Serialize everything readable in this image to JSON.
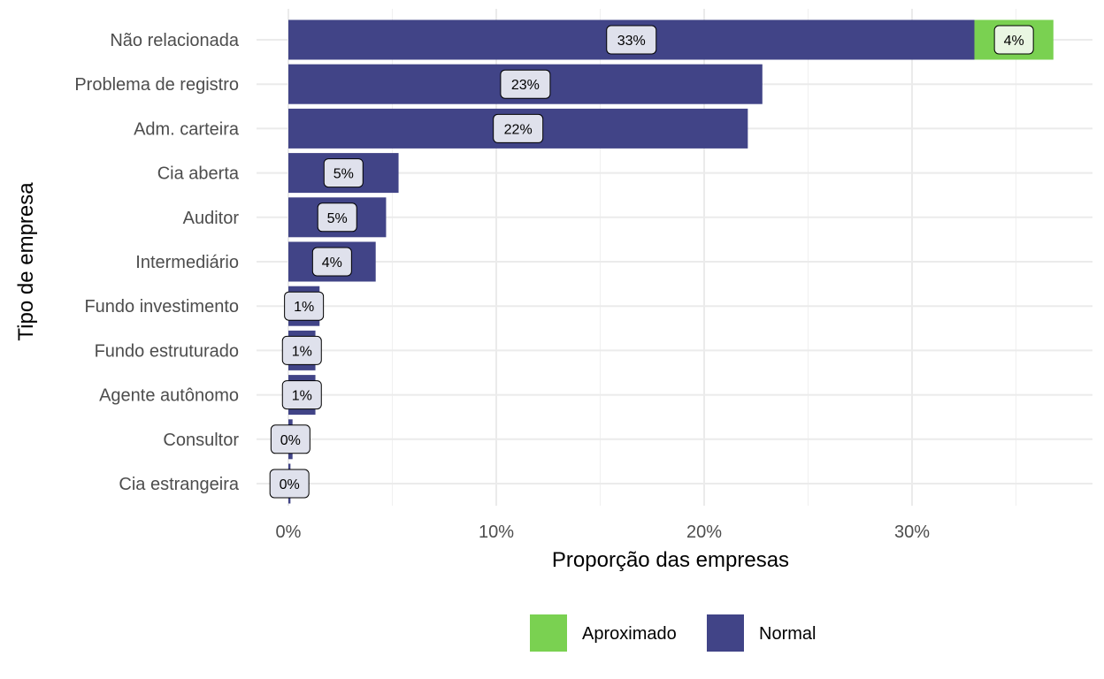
{
  "chart_data": {
    "type": "bar",
    "orientation": "horizontal",
    "stacked": true,
    "xlabel": "Proporção das empresas",
    "ylabel": "Tipo de empresa",
    "xlim": [
      -0.01,
      0.385
    ],
    "x_ticks": [
      0,
      0.1,
      0.2,
      0.3
    ],
    "x_tick_labels": [
      "0%",
      "10%",
      "20%",
      "30%"
    ],
    "grid": true,
    "legend_position": "bottom",
    "categories": [
      "Não relacionada",
      "Problema de registro",
      "Adm. carteira",
      "Cia aberta",
      "Auditor",
      "Intermediário",
      "Fundo investimento",
      "Fundo estruturado",
      "Agente autônomo",
      "Consultor",
      "Cia estrangeira"
    ],
    "series": [
      {
        "name": "Normal",
        "color": "#414487",
        "values": [
          0.33,
          0.228,
          0.221,
          0.053,
          0.047,
          0.042,
          0.015,
          0.013,
          0.013,
          0.002,
          0.001
        ],
        "labels": [
          "33%",
          "23%",
          "22%",
          "5%",
          "5%",
          "4%",
          "1%",
          "1%",
          "1%",
          "0%",
          "0%"
        ]
      },
      {
        "name": "Aproximado",
        "color": "#7AD151",
        "values": [
          0.038,
          0,
          0,
          0,
          0,
          0,
          0,
          0,
          0,
          0,
          0
        ],
        "labels": [
          "4%",
          "",
          "",
          "",
          "",
          "",
          "",
          "",
          "",
          "",
          ""
        ]
      }
    ],
    "legend": [
      {
        "name": "Aproximado",
        "color": "#7AD151"
      },
      {
        "name": "Normal",
        "color": "#414487"
      }
    ]
  }
}
